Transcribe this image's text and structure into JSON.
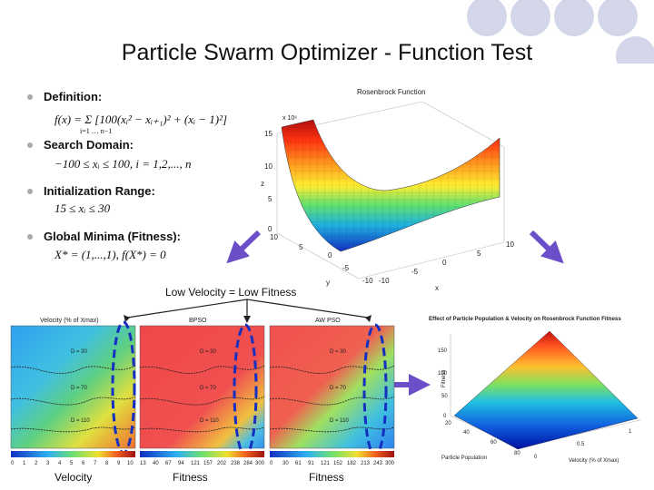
{
  "slide": {
    "title": "Particle Swarm Optimizer - Function Test",
    "accent_circle_color": "#d4d6ea"
  },
  "bullets": [
    {
      "label": "Definition:",
      "formula": "f(x) = Σ [100(xᵢ² − xᵢ₊₁)² + (xᵢ − 1)²]",
      "formula_sub": "i=1 … n−1"
    },
    {
      "label": "Search Domain:",
      "formula": "−100 ≤ xᵢ ≤ 100, i = 1,2,..., n"
    },
    {
      "label": "Initialization Range:",
      "formula": "15 ≤ xᵢ ≤ 30"
    },
    {
      "label": "Global Minima (Fitness):",
      "formula": "X* = (1,...,1), f(X*) = 0"
    }
  ],
  "rosenbrock_plot": {
    "title": "Rosenbrock Function",
    "z_scale": "x 10⁶",
    "z_ticks": [
      "15",
      "10",
      "5",
      "0"
    ],
    "z_label": "z",
    "x_ticks": [
      "-10",
      "-5",
      "0",
      "5",
      "10"
    ],
    "y_ticks": [
      "10",
      "5",
      "0",
      "-5",
      "-10"
    ],
    "x_label": "x",
    "y_label": "y"
  },
  "annotation": "Low Velocity = Low Fitness",
  "heatmaps": [
    {
      "title": "Velocity (% of Xmax)",
      "caption": "Velocity",
      "colorbar_ticks": [
        "0",
        "1",
        "2",
        "3",
        "4",
        "5",
        "6",
        "7",
        "8",
        "9",
        "10"
      ],
      "contour_labels": [
        "D = 30",
        "D = 70",
        "D = 110"
      ]
    },
    {
      "title": "BPSO",
      "caption": "Fitness",
      "colorbar_ticks": [
        "13",
        "40",
        "67",
        "94",
        "121",
        "157",
        "202",
        "238",
        "284",
        "300"
      ],
      "contour_labels": [
        "D = 30",
        "D = 70",
        "D = 110"
      ]
    },
    {
      "title": "AW PSO",
      "caption": "Fitness",
      "colorbar_ticks": [
        "0",
        "30",
        "61",
        "91",
        "121",
        "152",
        "182",
        "213",
        "243",
        "300"
      ],
      "contour_labels": [
        "D = 30",
        "D = 70",
        "D = 110"
      ]
    }
  ],
  "surface_plot": {
    "title": "Effect of Particle Population & Velocity on Rosenbrock Function Fitness",
    "z_ticks": [
      "150",
      "100",
      "50",
      "0"
    ],
    "z_label": "Fitness",
    "pop_ticks": [
      "20",
      "40",
      "60",
      "80"
    ],
    "pop_label": "Particle Population",
    "vel_ticks": [
      "0",
      "0.5",
      "1"
    ],
    "vel_label": "Velocity (% of Xmax)"
  }
}
